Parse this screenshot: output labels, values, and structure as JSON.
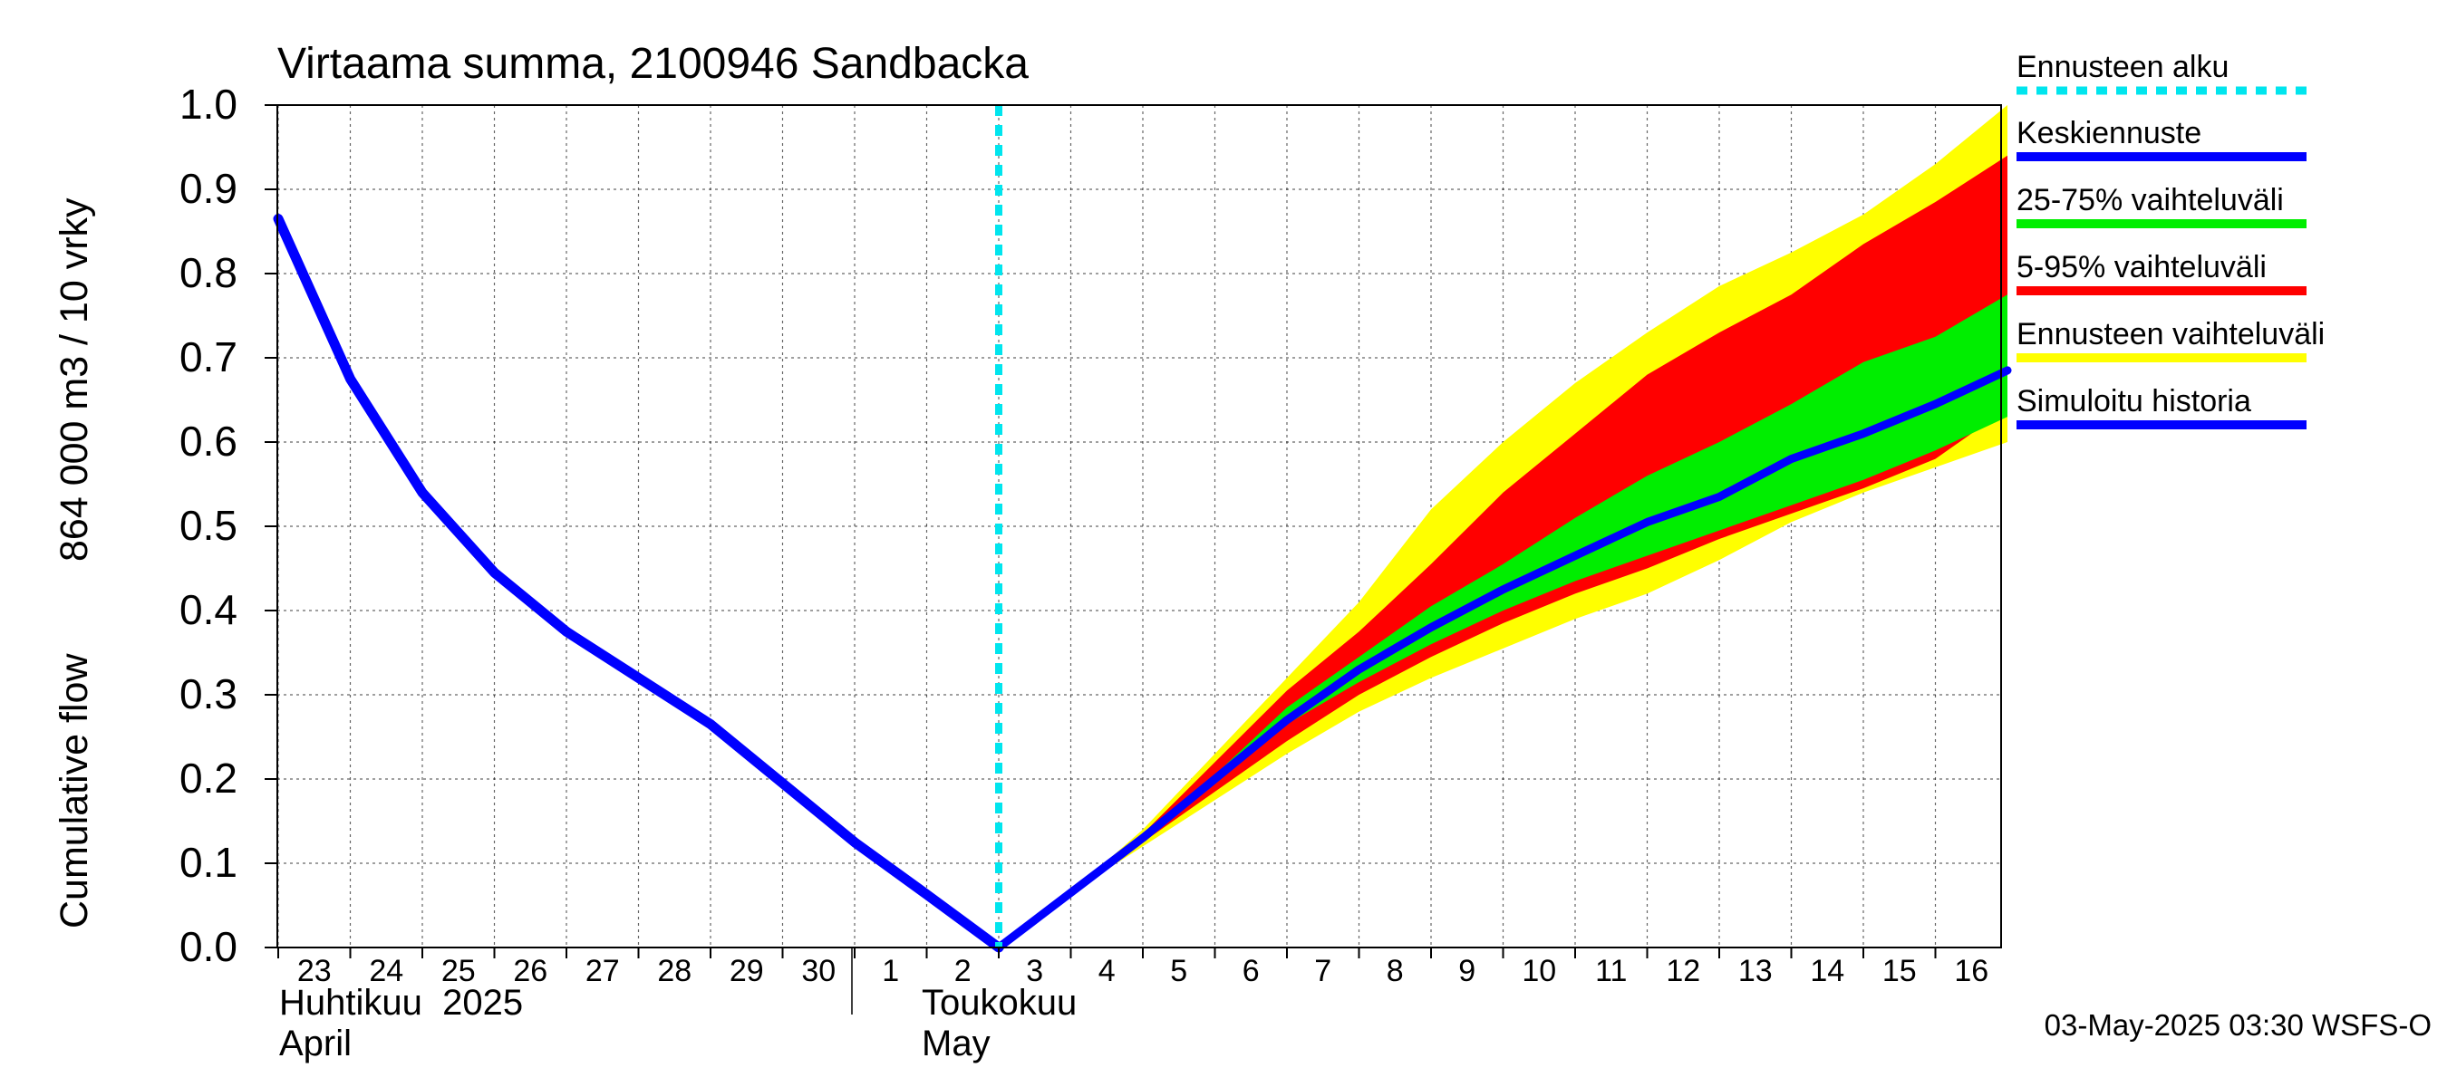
{
  "chart_data": {
    "type": "area",
    "title": "Virtaama summa, 2100946 Sandbacka",
    "ylabel_line1": "Cumulative flow",
    "ylabel_line2": "864 000 m3 / 10 vrky",
    "ylim": [
      0.0,
      1.0
    ],
    "y_ticks": [
      0.0,
      0.1,
      0.2,
      0.3,
      0.4,
      0.5,
      0.6,
      0.7,
      0.8,
      0.9,
      1.0
    ],
    "y_tick_labels": [
      "0.0",
      "0.1",
      "0.2",
      "0.3",
      "0.4",
      "0.5",
      "0.6",
      "0.7",
      "0.8",
      "0.9",
      "1.0"
    ],
    "grid": true,
    "x_tick_labels": [
      "23",
      "24",
      "25",
      "26",
      "27",
      "28",
      "29",
      "30",
      "1",
      "2",
      "3",
      "4",
      "5",
      "6",
      "7",
      "8",
      "9",
      "10",
      "11",
      "12",
      "13",
      "14",
      "15",
      "16"
    ],
    "month_labels": {
      "april_fi": "Huhtikuu  2025",
      "april_en": "April",
      "may_fi": "Toukokuu",
      "may_en": "May"
    },
    "forecast_start_day": 10.0,
    "legend_position": "right",
    "legend": [
      {
        "label": "Ennusteen alku",
        "color": "#00e5ee",
        "style": "dashed"
      },
      {
        "label": "Keskiennuste",
        "color": "#0000ff",
        "style": "solid"
      },
      {
        "label": "25-75% vaihteluväli",
        "color": "#00ee00",
        "style": "solid"
      },
      {
        "label": "5-95% vaihteluväli",
        "color": "#ff0000",
        "style": "solid"
      },
      {
        "label": "Ennusteen vaihteluväli",
        "color": "#ffff00",
        "style": "solid"
      },
      {
        "label": "Simuloitu historia",
        "color": "#0000ff",
        "style": "solid"
      }
    ],
    "colors": {
      "history": "#0000ff",
      "median": "#0000ff",
      "band_25_75": "#00ee00",
      "band_5_95": "#ff0000",
      "band_range": "#ffff00",
      "forecast_start": "#00e5ee"
    },
    "history": {
      "x": [
        0,
        1,
        2,
        3,
        4,
        5,
        6,
        7,
        8,
        9,
        10
      ],
      "y": [
        0.865,
        0.675,
        0.54,
        0.445,
        0.375,
        0.32,
        0.265,
        0.195,
        0.125,
        0.063,
        0.0
      ]
    },
    "forecast_x": [
      10,
      11,
      12,
      13,
      14,
      15,
      16,
      17,
      18,
      19,
      20,
      21,
      22,
      23,
      24
    ],
    "forecast_median": [
      0.0,
      0.065,
      0.13,
      0.2,
      0.27,
      0.33,
      0.38,
      0.425,
      0.465,
      0.505,
      0.535,
      0.58,
      0.61,
      0.645,
      0.685
    ],
    "forecast_p25": [
      0.0,
      0.065,
      0.13,
      0.195,
      0.265,
      0.315,
      0.36,
      0.4,
      0.435,
      0.465,
      0.495,
      0.525,
      0.555,
      0.59,
      0.63
    ],
    "forecast_p75": [
      0.0,
      0.065,
      0.13,
      0.205,
      0.285,
      0.345,
      0.405,
      0.455,
      0.51,
      0.56,
      0.6,
      0.645,
      0.695,
      0.725,
      0.775
    ],
    "forecast_p05": [
      0.0,
      0.065,
      0.125,
      0.185,
      0.245,
      0.3,
      0.345,
      0.385,
      0.42,
      0.45,
      0.485,
      0.515,
      0.545,
      0.58,
      0.64
    ],
    "forecast_p95": [
      0.0,
      0.065,
      0.135,
      0.22,
      0.305,
      0.375,
      0.455,
      0.54,
      0.61,
      0.68,
      0.73,
      0.775,
      0.835,
      0.885,
      0.94
    ],
    "forecast_min": [
      0.0,
      0.065,
      0.12,
      0.175,
      0.23,
      0.28,
      0.32,
      0.355,
      0.39,
      0.42,
      0.46,
      0.505,
      0.54,
      0.57,
      0.6
    ],
    "forecast_max": [
      0.0,
      0.065,
      0.14,
      0.23,
      0.32,
      0.41,
      0.52,
      0.6,
      0.67,
      0.73,
      0.785,
      0.825,
      0.87,
      0.93,
      1.0
    ],
    "timestamp": "03-May-2025 03:30 WSFS-O"
  }
}
